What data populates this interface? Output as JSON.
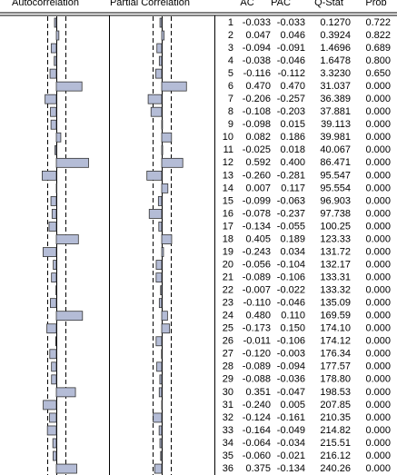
{
  "table": {
    "header": [
      "Autocorrelation",
      "Partial Correlation",
      "AC",
      "PAC",
      "Q-Stat",
      "Prob"
    ],
    "rows": [
      [
        "1",
        "-0.033",
        "-0.033",
        "0.1270",
        "0.722"
      ],
      [
        "2",
        "0.047",
        "0.046",
        "0.3924",
        "0.822"
      ],
      [
        "3",
        "-0.094",
        "-0.091",
        "1.4696",
        "0.689"
      ],
      [
        "4",
        "-0.038",
        "-0.046",
        "1.6478",
        "0.800"
      ],
      [
        "5",
        "-0.116",
        "-0.112",
        "3.3230",
        "0.650"
      ],
      [
        "6",
        "0.470",
        "0.470",
        "31.037",
        "0.000"
      ],
      [
        "7",
        "-0.206",
        "-0.257",
        "36.389",
        "0.000"
      ],
      [
        "8",
        "-0.108",
        "-0.203",
        "37.881",
        "0.000"
      ],
      [
        "9",
        "-0.098",
        "0.015",
        "39.113",
        "0.000"
      ],
      [
        "10",
        "0.082",
        "0.186",
        "39.981",
        "0.000"
      ],
      [
        "11",
        "-0.025",
        "0.018",
        "40.067",
        "0.000"
      ],
      [
        "12",
        "0.592",
        "0.400",
        "86.471",
        "0.000"
      ],
      [
        "13",
        "-0.260",
        "-0.281",
        "95.547",
        "0.000"
      ],
      [
        "14",
        "0.007",
        "0.117",
        "95.554",
        "0.000"
      ],
      [
        "15",
        "-0.099",
        "-0.063",
        "96.903",
        "0.000"
      ],
      [
        "16",
        "-0.078",
        "-0.237",
        "97.738",
        "0.000"
      ],
      [
        "17",
        "-0.134",
        "-0.055",
        "100.25",
        "0.000"
      ],
      [
        "18",
        "0.405",
        "0.189",
        "123.33",
        "0.000"
      ],
      [
        "19",
        "-0.243",
        "0.034",
        "131.72",
        "0.000"
      ],
      [
        "20",
        "-0.056",
        "-0.104",
        "132.17",
        "0.000"
      ],
      [
        "21",
        "-0.089",
        "-0.106",
        "133.31",
        "0.000"
      ],
      [
        "22",
        "-0.007",
        "-0.022",
        "133.32",
        "0.000"
      ],
      [
        "23",
        "-0.110",
        "-0.046",
        "135.09",
        "0.000"
      ],
      [
        "24",
        "0.480",
        "0.110",
        "169.59",
        "0.000"
      ],
      [
        "25",
        "-0.173",
        "0.150",
        "174.10",
        "0.000"
      ],
      [
        "26",
        "-0.011",
        "-0.106",
        "174.12",
        "0.000"
      ],
      [
        "27",
        "-0.120",
        "-0.003",
        "176.34",
        "0.000"
      ],
      [
        "28",
        "-0.089",
        "-0.094",
        "177.57",
        "0.000"
      ],
      [
        "29",
        "-0.088",
        "-0.036",
        "178.80",
        "0.000"
      ],
      [
        "30",
        "0.351",
        "-0.047",
        "198.53",
        "0.000"
      ],
      [
        "31",
        "-0.240",
        "0.005",
        "207.85",
        "0.000"
      ],
      [
        "32",
        "-0.124",
        "-0.161",
        "210.35",
        "0.000"
      ],
      [
        "33",
        "-0.164",
        "-0.049",
        "214.82",
        "0.000"
      ],
      [
        "34",
        "-0.064",
        "-0.034",
        "215.51",
        "0.000"
      ],
      [
        "35",
        "-0.060",
        "-0.021",
        "216.12",
        "0.000"
      ],
      [
        "36",
        "0.375",
        "-0.134",
        "240.26",
        "0.000"
      ]
    ]
  }
}
